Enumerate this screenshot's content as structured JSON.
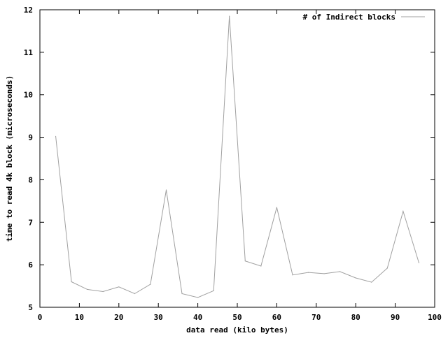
{
  "chart_data": {
    "type": "line",
    "xlabel": "data read (kilo bytes)",
    "ylabel": "time to read 4k block (microseconds)",
    "xlim": [
      0,
      100
    ],
    "ylim": [
      5,
      12
    ],
    "x_ticks": [
      0,
      10,
      20,
      30,
      40,
      50,
      60,
      70,
      80,
      90,
      100
    ],
    "y_ticks": [
      5,
      6,
      7,
      8,
      9,
      10,
      11,
      12
    ],
    "grid": false,
    "legend_position": "top-right",
    "series": [
      {
        "name": "# of Indirect blocks",
        "color": "#a0a0a0",
        "points": [
          [
            4,
            9.02
          ],
          [
            8,
            5.6
          ],
          [
            12,
            5.42
          ],
          [
            16,
            5.37
          ],
          [
            20,
            5.48
          ],
          [
            24,
            5.32
          ],
          [
            28,
            5.54
          ],
          [
            32,
            7.76
          ],
          [
            36,
            5.32
          ],
          [
            40,
            5.23
          ],
          [
            44,
            5.39
          ],
          [
            48,
            11.85
          ],
          [
            52,
            6.09
          ],
          [
            56,
            5.97
          ],
          [
            60,
            7.35
          ],
          [
            64,
            5.76
          ],
          [
            68,
            5.82
          ],
          [
            72,
            5.79
          ],
          [
            76,
            5.84
          ],
          [
            80,
            5.69
          ],
          [
            84,
            5.59
          ],
          [
            88,
            5.92
          ],
          [
            92,
            7.26
          ],
          [
            96,
            6.05
          ]
        ]
      }
    ]
  }
}
